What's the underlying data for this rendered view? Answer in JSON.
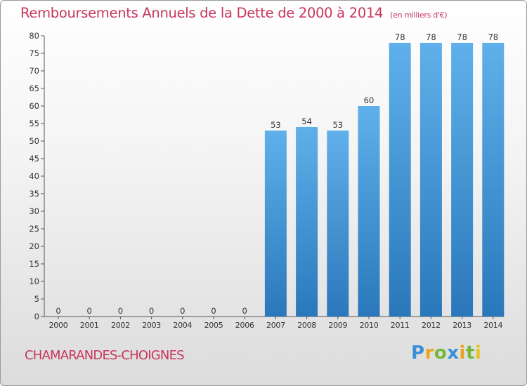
{
  "title": "Remboursements Annuels de la Dette de 2000 à 2014",
  "subtitle": "(en milliers d'€)",
  "commune": "CHAMARANDES-CHOIGNES",
  "logo": {
    "letters": [
      "P",
      "r",
      "o",
      "x",
      "i",
      "t",
      "i"
    ]
  },
  "colors": {
    "accent": "#c8365f",
    "bar_top": "#5fb0ea",
    "bar_bottom": "#2a78bb"
  },
  "chart_data": {
    "type": "bar",
    "title": "Remboursements Annuels de la Dette de 2000 à 2014",
    "xlabel": "",
    "ylabel": "",
    "categories": [
      "2000",
      "2001",
      "2002",
      "2003",
      "2004",
      "2005",
      "2006",
      "2007",
      "2008",
      "2009",
      "2010",
      "2011",
      "2012",
      "2013",
      "2014"
    ],
    "values": [
      0,
      0,
      0,
      0,
      0,
      0,
      0,
      53,
      54,
      53,
      60,
      78,
      78,
      78,
      78
    ],
    "ylim": [
      0,
      80
    ],
    "yticks": [
      0,
      5,
      10,
      15,
      20,
      25,
      30,
      35,
      40,
      45,
      50,
      55,
      60,
      65,
      70,
      75,
      80
    ],
    "grid": false,
    "legend": "none"
  }
}
